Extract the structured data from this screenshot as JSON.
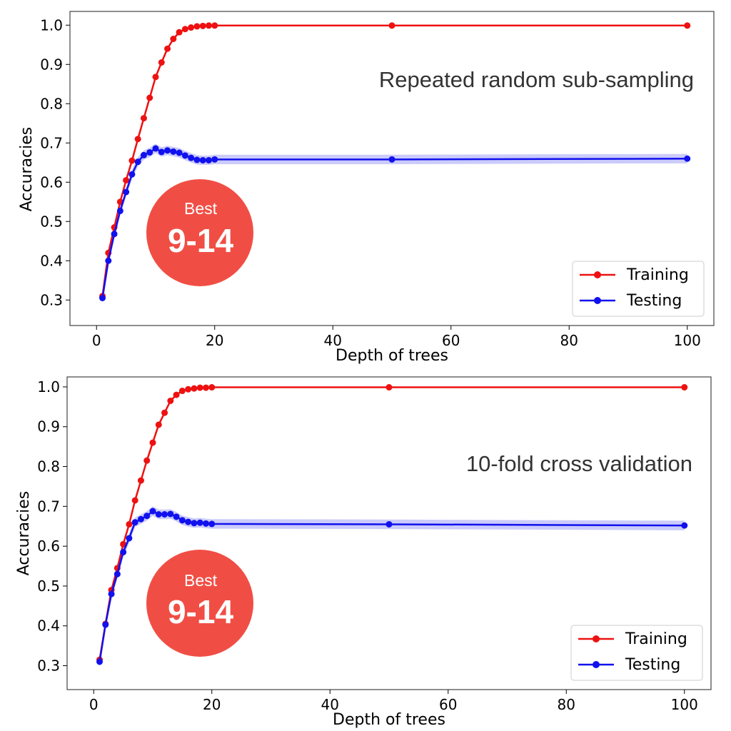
{
  "chart_data": [
    {
      "type": "line",
      "annotation": "Repeated random sub-sampling",
      "xlabel": "Depth of trees",
      "ylabel": "Accuracies",
      "xlim": [
        -4.5,
        104.5
      ],
      "ylim": [
        0.235,
        1.035
      ],
      "xticks": [
        0,
        20,
        40,
        60,
        80,
        100
      ],
      "yticks": [
        0.3,
        0.4,
        0.5,
        0.6,
        0.7,
        0.8,
        0.9,
        1.0
      ],
      "xtick_labels": [
        "0",
        "20",
        "40",
        "60",
        "80",
        "100"
      ],
      "ytick_labels": [
        "0.3",
        "0.4",
        "0.5",
        "0.6",
        "0.7",
        "0.8",
        "0.9",
        "1.0"
      ],
      "legend_position": "lower-right",
      "grid": false,
      "badge": {
        "small": "Best",
        "big": "9-14",
        "color": "#f04e45"
      },
      "series": [
        {
          "name": "Training",
          "color": "#ee1111",
          "x": [
            1,
            2,
            3,
            4,
            5,
            6,
            7,
            8,
            9,
            10,
            11,
            12,
            13,
            14,
            15,
            16,
            17,
            18,
            19,
            20,
            50,
            100
          ],
          "y": [
            0.31,
            0.42,
            0.485,
            0.55,
            0.605,
            0.655,
            0.71,
            0.763,
            0.815,
            0.868,
            0.905,
            0.94,
            0.965,
            0.982,
            0.99,
            0.994,
            0.997,
            0.998,
            0.999,
            0.999,
            0.999,
            0.999
          ]
        },
        {
          "name": "Testing",
          "color": "#1111ee",
          "band": 0.012,
          "x": [
            1,
            2,
            3,
            4,
            5,
            6,
            7,
            8,
            9,
            10,
            11,
            12,
            13,
            14,
            15,
            16,
            17,
            18,
            19,
            20,
            50,
            100
          ],
          "y": [
            0.305,
            0.4,
            0.468,
            0.527,
            0.575,
            0.62,
            0.652,
            0.669,
            0.676,
            0.686,
            0.677,
            0.681,
            0.678,
            0.675,
            0.668,
            0.662,
            0.657,
            0.656,
            0.656,
            0.658,
            0.658,
            0.66
          ]
        }
      ]
    },
    {
      "type": "line",
      "annotation": "10-fold cross validation",
      "xlabel": "Depth of trees",
      "ylabel": "Accuracies",
      "xlim": [
        -4.5,
        104.5
      ],
      "ylim": [
        0.24,
        1.025
      ],
      "xticks": [
        0,
        20,
        40,
        60,
        80,
        100
      ],
      "yticks": [
        0.3,
        0.4,
        0.5,
        0.6,
        0.7,
        0.8,
        0.9,
        1.0
      ],
      "xtick_labels": [
        "0",
        "20",
        "40",
        "60",
        "80",
        "100"
      ],
      "ytick_labels": [
        "0.3",
        "0.4",
        "0.5",
        "0.6",
        "0.7",
        "0.8",
        "0.9",
        "1.0"
      ],
      "legend_position": "lower-right",
      "grid": false,
      "badge": {
        "small": "Best",
        "big": "9-14",
        "color": "#f04e45"
      },
      "series": [
        {
          "name": "Training",
          "color": "#ee1111",
          "x": [
            1,
            2,
            3,
            4,
            5,
            6,
            7,
            8,
            9,
            10,
            11,
            12,
            13,
            14,
            15,
            16,
            17,
            18,
            19,
            20,
            50,
            100
          ],
          "y": [
            0.315,
            0.405,
            0.49,
            0.545,
            0.605,
            0.655,
            0.715,
            0.765,
            0.815,
            0.86,
            0.905,
            0.935,
            0.965,
            0.98,
            0.99,
            0.994,
            0.996,
            0.998,
            0.998,
            0.999,
            0.999,
            0.999
          ]
        },
        {
          "name": "Testing",
          "color": "#1111ee",
          "band": 0.012,
          "x": [
            1,
            2,
            3,
            4,
            5,
            6,
            7,
            8,
            9,
            10,
            11,
            12,
            13,
            14,
            15,
            16,
            17,
            18,
            19,
            20,
            50,
            100
          ],
          "y": [
            0.31,
            0.403,
            0.48,
            0.53,
            0.585,
            0.62,
            0.66,
            0.668,
            0.676,
            0.688,
            0.68,
            0.68,
            0.681,
            0.674,
            0.665,
            0.661,
            0.658,
            0.659,
            0.657,
            0.656,
            0.655,
            0.652
          ]
        }
      ]
    }
  ]
}
